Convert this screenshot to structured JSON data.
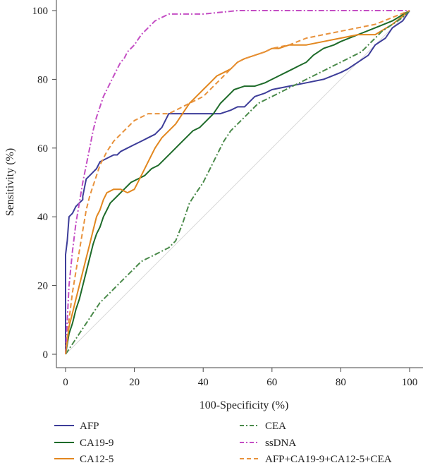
{
  "chart_data": {
    "type": "line",
    "title": "",
    "xlabel": "100-Specificity (%)",
    "ylabel": "Sensitivity (%)",
    "xlim": [
      0,
      100
    ],
    "ylim": [
      0,
      100
    ],
    "x_ticks": [
      "0",
      "20",
      "40",
      "60",
      "80",
      "100"
    ],
    "y_ticks": [
      "0",
      "20",
      "40",
      "60",
      "80",
      "100"
    ],
    "grid": false,
    "legend_position": "bottom",
    "reference_line": {
      "x": [
        0,
        100
      ],
      "y": [
        0,
        100
      ],
      "color": "#d8d8d8"
    },
    "series": [
      {
        "name": "AFP",
        "color": "#3d3d99",
        "dash": "solid",
        "x": [
          0,
          0,
          0.5,
          1,
          2,
          3,
          4,
          5,
          5,
          6,
          7,
          8,
          9,
          10,
          12,
          14,
          15,
          16,
          18,
          20,
          22,
          24,
          26,
          28,
          30,
          35,
          40,
          45,
          48,
          50,
          52,
          55,
          58,
          60,
          65,
          70,
          75,
          80,
          82,
          85,
          88,
          90,
          93,
          95,
          98,
          100
        ],
        "y": [
          0,
          29,
          33,
          40,
          41,
          43,
          44,
          45,
          46,
          51,
          52,
          53,
          54,
          56,
          57,
          58,
          58,
          59,
          60,
          61,
          62,
          63,
          64,
          66,
          70,
          70,
          70,
          70,
          71,
          72,
          72,
          75,
          76,
          77,
          78,
          79,
          80,
          82,
          83,
          85,
          87,
          90,
          92,
          95,
          97,
          100
        ]
      },
      {
        "name": "CA19-9",
        "color": "#1e6b2a",
        "dash": "solid",
        "x": [
          0,
          1,
          2,
          3,
          4,
          5,
          6,
          7,
          8,
          9,
          10,
          11,
          12,
          13,
          15,
          17,
          19,
          21,
          23,
          25,
          27,
          29,
          31,
          33,
          35,
          37,
          39,
          41,
          43,
          45,
          47,
          49,
          52,
          55,
          58,
          60,
          62,
          64,
          66,
          68,
          70,
          72,
          75,
          78,
          80,
          85,
          90,
          95,
          100
        ],
        "y": [
          0,
          6,
          9,
          13,
          16,
          20,
          24,
          28,
          32,
          35,
          37,
          40,
          42,
          44,
          46,
          48,
          50,
          51,
          52,
          54,
          55,
          57,
          59,
          61,
          63,
          65,
          66,
          68,
          70,
          73,
          75,
          77,
          78,
          78,
          79,
          80,
          81,
          82,
          83,
          84,
          85,
          87,
          89,
          90,
          91,
          93,
          95,
          97,
          100
        ]
      },
      {
        "name": "CA12-5",
        "color": "#e2871f",
        "dash": "solid",
        "x": [
          0,
          1,
          2,
          3,
          4,
          5,
          6,
          7,
          8,
          9,
          10,
          11,
          12,
          14,
          16,
          18,
          20,
          22,
          24,
          26,
          28,
          30,
          32,
          34,
          36,
          38,
          40,
          42,
          44,
          46,
          48,
          50,
          52,
          55,
          58,
          60,
          62,
          65,
          70,
          75,
          80,
          85,
          88,
          90,
          95,
          100
        ],
        "y": [
          0,
          8,
          12,
          16,
          20,
          24,
          28,
          32,
          36,
          40,
          42,
          45,
          47,
          48,
          48,
          47,
          48,
          52,
          56,
          60,
          63,
          65,
          67,
          70,
          73,
          75,
          77,
          79,
          81,
          82,
          83,
          85,
          86,
          87,
          88,
          89,
          89,
          90,
          90,
          91,
          92,
          93,
          93,
          93,
          96,
          100
        ]
      },
      {
        "name": "CEA",
        "color": "#4a8a4a",
        "dash": "dashdot",
        "x": [
          0,
          2,
          4,
          6,
          8,
          10,
          12,
          14,
          16,
          18,
          20,
          22,
          24,
          26,
          28,
          30,
          32,
          34,
          35,
          36,
          38,
          40,
          42,
          44,
          46,
          48,
          50,
          52,
          54,
          56,
          58,
          60,
          62,
          64,
          66,
          68,
          70,
          72,
          74,
          76,
          78,
          80,
          82,
          84,
          86,
          88,
          90,
          92,
          95,
          98,
          100
        ],
        "y": [
          0,
          3,
          6,
          9,
          12,
          15,
          17,
          19,
          21,
          23,
          25,
          27,
          28,
          29,
          30,
          31,
          33,
          38,
          41,
          44,
          47,
          50,
          54,
          58,
          62,
          65,
          67,
          69,
          71,
          73,
          74,
          75,
          76,
          77,
          78,
          79,
          80,
          81,
          82,
          83,
          84,
          85,
          86,
          87,
          88,
          90,
          92,
          94,
          96,
          98,
          100
        ]
      },
      {
        "name": "ssDNA",
        "color": "#c44ec4",
        "dash": "dashdot",
        "x": [
          0,
          1,
          2,
          3,
          4,
          5,
          6,
          7,
          8,
          9,
          10,
          11,
          12,
          13,
          14,
          15,
          16,
          17,
          18,
          19,
          20,
          22,
          24,
          26,
          28,
          30,
          35,
          40,
          50,
          60,
          70,
          80,
          90,
          100
        ],
        "y": [
          0,
          20,
          30,
          38,
          44,
          50,
          55,
          60,
          65,
          69,
          72,
          75,
          77,
          79,
          81,
          83,
          85,
          86,
          88,
          89,
          90,
          93,
          95,
          97,
          98,
          99,
          99,
          99,
          100,
          100,
          100,
          100,
          100,
          100
        ]
      },
      {
        "name": "AFP+CA19-9+CA12-5+CEA",
        "color": "#e8923c",
        "dash": "dashed",
        "x": [
          0,
          1,
          2,
          3,
          4,
          5,
          6,
          7,
          8,
          9,
          10,
          12,
          14,
          16,
          18,
          20,
          22,
          24,
          26,
          28,
          30,
          32,
          34,
          36,
          38,
          40,
          42,
          44,
          46,
          48,
          50,
          52,
          55,
          58,
          60,
          65,
          70,
          75,
          80,
          85,
          90,
          95,
          100
        ],
        "y": [
          0,
          10,
          18,
          24,
          30,
          36,
          42,
          46,
          49,
          52,
          55,
          59,
          62,
          64,
          66,
          68,
          69,
          70,
          70,
          70,
          70,
          71,
          72,
          73,
          74,
          75,
          77,
          79,
          81,
          83,
          85,
          86,
          87,
          88,
          89,
          90,
          92,
          93,
          94,
          95,
          96,
          98,
          100
        ]
      }
    ]
  }
}
